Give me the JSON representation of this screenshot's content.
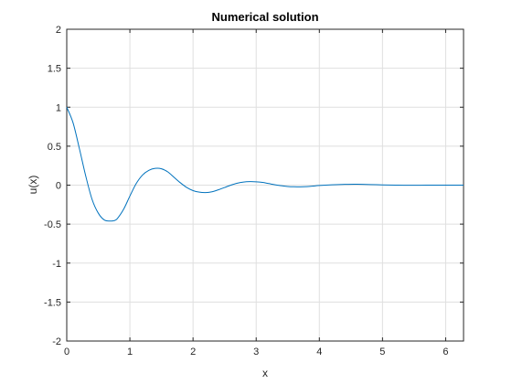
{
  "chart_data": {
    "type": "line",
    "title": "Numerical solution",
    "xlabel": "x",
    "ylabel": "u(x)",
    "xlim": [
      0,
      6.2832
    ],
    "ylim": [
      -2,
      2
    ],
    "xticks": [
      0,
      1,
      2,
      3,
      4,
      5,
      6
    ],
    "yticks": [
      -2,
      -1.5,
      -1,
      -0.5,
      0,
      0.5,
      1,
      1.5,
      2
    ],
    "x_tick_labels": [
      "0",
      "1",
      "2",
      "3",
      "4",
      "5",
      "6"
    ],
    "y_tick_labels": [
      "-2",
      "-1.5",
      "-1",
      "-0.5",
      "0",
      "0.5",
      "1",
      "1.5",
      "2"
    ],
    "grid": true,
    "series": [
      {
        "color": "#0072BD",
        "x": [
          0,
          0.1,
          0.2,
          0.3,
          0.4,
          0.5,
          0.6,
          0.7,
          0.75,
          0.8,
          0.9,
          1.0,
          1.1,
          1.2,
          1.3,
          1.4,
          1.5,
          1.6,
          1.7,
          1.8,
          1.9,
          2.0,
          2.1,
          2.2,
          2.3,
          2.4,
          2.5,
          2.6,
          2.7,
          2.8,
          2.9,
          3.0,
          3.1,
          3.2,
          3.3,
          3.4,
          3.5,
          3.6,
          3.7,
          3.8,
          3.9,
          4.0,
          4.2,
          4.4,
          4.6,
          4.8,
          5.0,
          5.2,
          5.4,
          5.6,
          5.8,
          6.0,
          6.2832
        ],
        "y": [
          1.0,
          0.8,
          0.47,
          0.12,
          -0.18,
          -0.36,
          -0.45,
          -0.46,
          -0.455,
          -0.43,
          -0.31,
          -0.14,
          0.02,
          0.13,
          0.19,
          0.215,
          0.21,
          0.17,
          0.1,
          0.03,
          -0.03,
          -0.07,
          -0.09,
          -0.095,
          -0.085,
          -0.06,
          -0.03,
          0.0,
          0.025,
          0.04,
          0.045,
          0.043,
          0.035,
          0.02,
          0.005,
          -0.008,
          -0.017,
          -0.021,
          -0.022,
          -0.019,
          -0.012,
          -0.005,
          0.004,
          0.01,
          0.011,
          0.008,
          0.003,
          0.0,
          -0.002,
          -0.001,
          0.0,
          0.0,
          0.0
        ]
      }
    ]
  }
}
